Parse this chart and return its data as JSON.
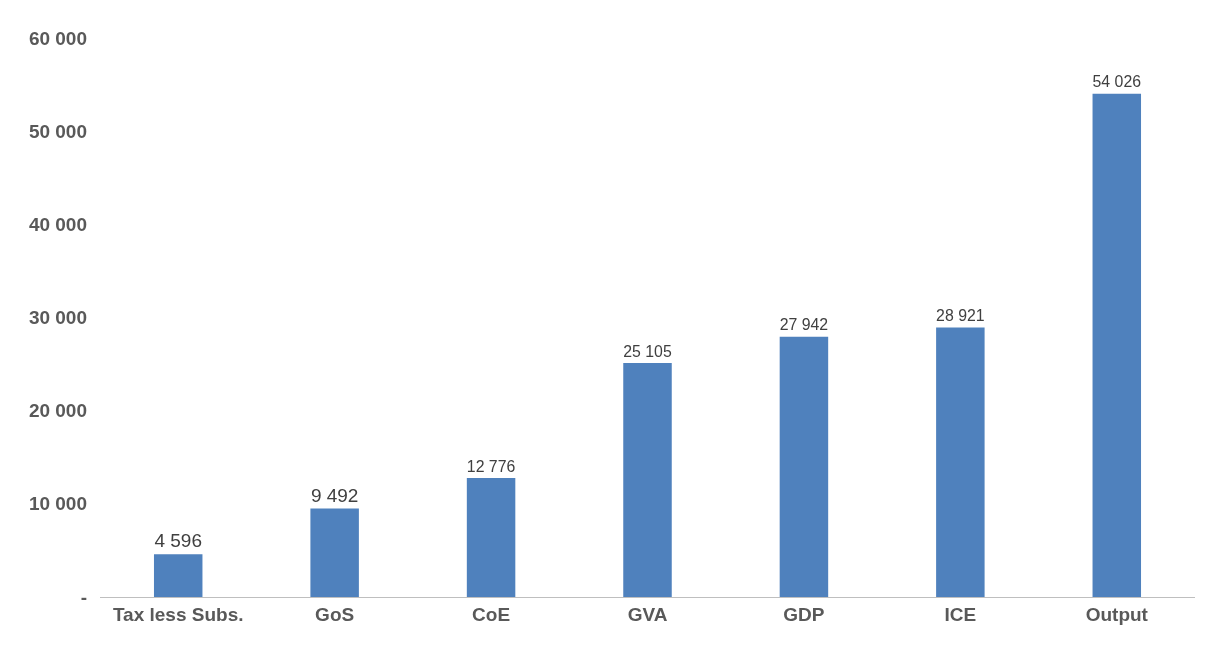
{
  "chart_data": {
    "type": "bar",
    "categories": [
      "Tax less Subs.",
      "GoS",
      "CoE",
      "GVA",
      "GDP",
      "ICE",
      "Output"
    ],
    "values": [
      4596,
      9492,
      12776,
      25105,
      27942,
      28921,
      54026
    ],
    "value_labels": [
      "4 596",
      "9 492",
      "12 776",
      "25 105",
      "27 942",
      "28 921",
      "54 026"
    ],
    "color": "#4f81bd",
    "ylim": [
      0,
      60000
    ],
    "yticks": [
      {
        "value": 0,
        "label": "-"
      },
      {
        "value": 10000,
        "label": "10 000"
      },
      {
        "value": 20000,
        "label": "20 000"
      },
      {
        "value": 30000,
        "label": "30 000"
      },
      {
        "value": 40000,
        "label": "40 000"
      },
      {
        "value": 50000,
        "label": "50 000"
      },
      {
        "value": 60000,
        "label": "60 000"
      }
    ],
    "marker": "none"
  }
}
